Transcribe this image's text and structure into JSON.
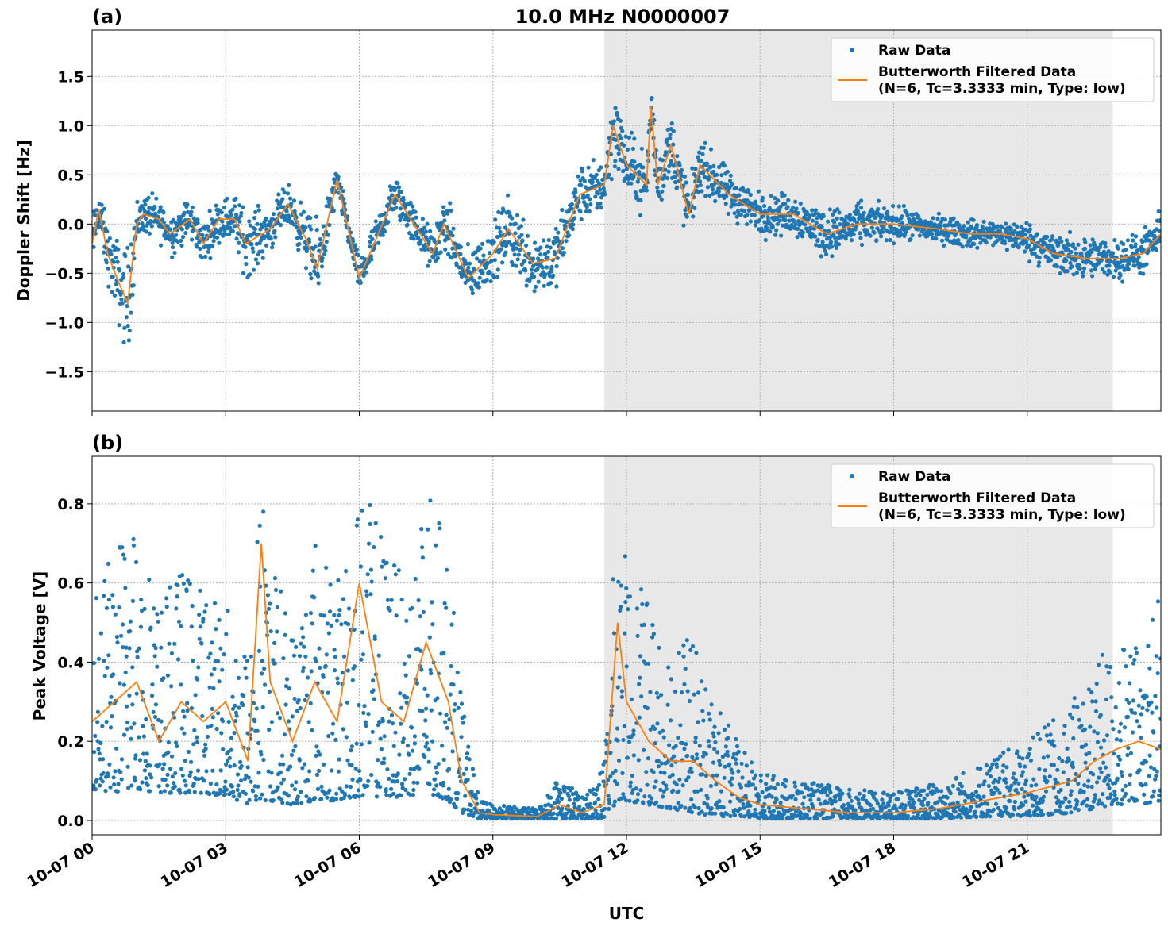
{
  "title": "10.0 MHz N0000007",
  "colors": {
    "raw": "#1f77b4",
    "filtered": "#ff7f0e",
    "shade": "#e8e8e8"
  },
  "chart_data": [
    {
      "type": "scatter",
      "panel_label": "(a)",
      "xlabel": "",
      "ylabel": "Doppler Shift [Hz]",
      "xlim_hours": [
        0,
        24
      ],
      "ylim": [
        -1.9,
        1.97
      ],
      "yticks": [
        -1.5,
        -1.0,
        -0.5,
        0.0,
        0.5,
        1.0,
        1.5
      ],
      "ytick_labels": [
        "−1.5",
        "−1.0",
        "−0.5",
        "0.0",
        "0.5",
        "1.0",
        "1.5"
      ],
      "grid": true,
      "shaded_span_hours": [
        11.5,
        22.92
      ],
      "legend": {
        "position": "top-right",
        "entries": [
          "Raw Data",
          "Butterworth Filtered Data",
          "(N=6, Tc=3.3333 min, Type: low)"
        ]
      },
      "series": [
        {
          "name": "Butterworth Filtered Data",
          "type": "line",
          "hours": [
            0,
            0.15,
            0.35,
            0.6,
            0.8,
            1.0,
            1.15,
            1.5,
            1.75,
            2.2,
            2.5,
            2.85,
            3.2,
            3.45,
            4.0,
            4.4,
            4.8,
            5.05,
            5.5,
            6.0,
            6.8,
            7.65,
            7.9,
            8.45,
            9.0,
            9.35,
            9.9,
            10.4,
            10.95,
            11.5,
            11.7,
            12.0,
            12.45,
            12.55,
            12.7,
            13.0,
            13.4,
            13.65,
            14.3,
            15.0,
            15.75,
            16.5,
            17.2,
            18.0,
            19.0,
            19.7,
            20.4,
            21.0,
            21.6,
            22.35,
            23.05,
            23.6,
            24
          ],
          "values": [
            -0.2,
            0.15,
            -0.3,
            -0.6,
            -0.8,
            0.0,
            0.1,
            0.05,
            -0.1,
            0.05,
            -0.2,
            0.05,
            0.05,
            -0.2,
            -0.05,
            0.2,
            -0.15,
            -0.45,
            0.45,
            -0.55,
            0.3,
            -0.3,
            0.0,
            -0.55,
            -0.3,
            -0.05,
            -0.4,
            -0.35,
            0.3,
            0.4,
            1.0,
            0.6,
            0.4,
            1.2,
            0.4,
            0.8,
            0.1,
            0.6,
            0.3,
            0.1,
            0.1,
            -0.1,
            0.0,
            0.0,
            -0.05,
            -0.1,
            -0.1,
            -0.15,
            -0.3,
            -0.35,
            -0.35,
            -0.3,
            -0.1
          ]
        },
        {
          "name": "Raw Data",
          "type": "scatter",
          "note_spread": "approximate spread of raw points around filtered values (Hz)",
          "spread": [
            0.35,
            0.35,
            0.4,
            0.6,
            0.8,
            0.35,
            0.3,
            0.3,
            0.3,
            0.3,
            0.3,
            0.3,
            0.35,
            0.5,
            0.3,
            0.3,
            0.4,
            0.6,
            0.2,
            0.25,
            0.3,
            0.3,
            0.4,
            0.4,
            0.4,
            0.5,
            0.5,
            0.45,
            0.4,
            0.4,
            0.6,
            0.5,
            0.4,
            0.5,
            0.4,
            0.5,
            0.4,
            0.35,
            0.35,
            0.3,
            0.3,
            0.35,
            0.3,
            0.25,
            0.2,
            0.2,
            0.2,
            0.25,
            0.3,
            0.3,
            0.3,
            0.3,
            0.3
          ]
        }
      ]
    },
    {
      "type": "scatter",
      "panel_label": "(b)",
      "xlabel": "UTC",
      "ylabel": "Peak Voltage [V]",
      "xlim_hours": [
        0,
        24
      ],
      "ylim": [
        -0.036,
        0.92
      ],
      "yticks": [
        0.0,
        0.2,
        0.4,
        0.6,
        0.8
      ],
      "ytick_labels": [
        "0.0",
        "0.2",
        "0.4",
        "0.6",
        "0.8"
      ],
      "xtick_labels": [
        "10-07 00",
        "10-07 03",
        "10-07 06",
        "10-07 09",
        "10-07 12",
        "10-07 15",
        "10-07 18",
        "10-07 21"
      ],
      "xtick_hours": [
        0,
        3,
        6,
        9,
        12,
        15,
        18,
        21
      ],
      "grid": true,
      "shaded_span_hours": [
        11.5,
        22.92
      ],
      "legend": {
        "position": "top-right",
        "entries": [
          "Raw Data",
          "Butterworth Filtered Data",
          "(N=6, Tc=3.3333 min, Type: low)"
        ]
      },
      "series": [
        {
          "name": "Butterworth Filtered Data",
          "type": "line",
          "hours": [
            0,
            0.5,
            1.0,
            1.5,
            2.0,
            2.5,
            3.0,
            3.5,
            3.8,
            4.0,
            4.5,
            5.0,
            5.5,
            6.0,
            6.5,
            7.0,
            7.5,
            8.0,
            8.3,
            8.7,
            9.0,
            10,
            10.5,
            11,
            11.5,
            11.8,
            12,
            12.5,
            13,
            13.5,
            14,
            14.5,
            15,
            16,
            17,
            18,
            19,
            20,
            21,
            22,
            22.5,
            23,
            23.5,
            24
          ],
          "values": [
            0.25,
            0.3,
            0.35,
            0.2,
            0.3,
            0.25,
            0.3,
            0.15,
            0.7,
            0.35,
            0.2,
            0.35,
            0.25,
            0.6,
            0.3,
            0.25,
            0.45,
            0.3,
            0.1,
            0.02,
            0.015,
            0.01,
            0.04,
            0.02,
            0.04,
            0.5,
            0.3,
            0.2,
            0.15,
            0.15,
            0.1,
            0.06,
            0.04,
            0.03,
            0.02,
            0.02,
            0.03,
            0.05,
            0.07,
            0.1,
            0.15,
            0.18,
            0.2,
            0.18
          ]
        },
        {
          "name": "Raw Data",
          "type": "scatter",
          "raw_low": [
            0.08,
            0.07,
            0.08,
            0.07,
            0.07,
            0.07,
            0.06,
            0.04,
            0.05,
            0.05,
            0.04,
            0.05,
            0.05,
            0.06,
            0.06,
            0.06,
            0.07,
            0.05,
            0.02,
            0.005,
            0.005,
            0.005,
            0.005,
            0.005,
            0.005,
            0.05,
            0.05,
            0.04,
            0.03,
            0.02,
            0.01,
            0.01,
            0.005,
            0.005,
            0.005,
            0.005,
            0.005,
            0.01,
            0.01,
            0.02,
            0.03,
            0.04,
            0.04,
            0.05
          ],
          "raw_high": [
            0.6,
            0.7,
            0.82,
            0.55,
            0.65,
            0.6,
            0.55,
            0.45,
            0.88,
            0.7,
            0.5,
            0.75,
            0.6,
            0.86,
            0.75,
            0.6,
            0.85,
            0.7,
            0.3,
            0.05,
            0.04,
            0.03,
            0.12,
            0.06,
            0.15,
            0.86,
            0.65,
            0.55,
            0.5,
            0.45,
            0.3,
            0.2,
            0.12,
            0.1,
            0.08,
            0.07,
            0.1,
            0.15,
            0.2,
            0.3,
            0.4,
            0.45,
            0.45,
            0.6
          ]
        }
      ]
    }
  ]
}
